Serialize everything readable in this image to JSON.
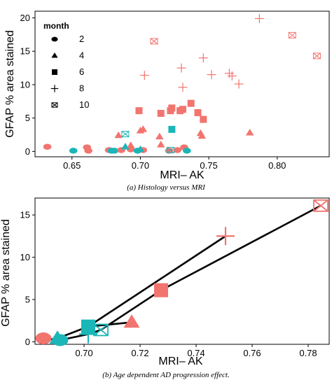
{
  "colors": {
    "salmon": "#F2746F",
    "teal": "#1BB6B8",
    "line": "#000000"
  },
  "chart_data": [
    {
      "type": "scatter",
      "title": "",
      "xlabel": "MRI– AK",
      "ylabel": "GFAP % area stained",
      "xlim": [
        0.623,
        0.838
      ],
      "ylim": [
        -0.8,
        21
      ],
      "xticks": [
        "0.65",
        "0.70",
        "0.75",
        "0.80"
      ],
      "xtick_values": [
        0.65,
        0.7,
        0.75,
        0.8
      ],
      "yticks": [
        "0",
        "5",
        "10",
        "15",
        "20"
      ],
      "ytick_values": [
        0,
        5,
        10,
        15,
        20
      ],
      "legend": {
        "title": "month",
        "position": "upper-left",
        "entries": [
          {
            "label": "2",
            "shape": "circle"
          },
          {
            "label": "4",
            "shape": "triangle"
          },
          {
            "label": "6",
            "shape": "square"
          },
          {
            "label": "8",
            "shape": "plus"
          },
          {
            "label": "10",
            "shape": "boxx"
          }
        ]
      },
      "caption": "(a) Histology versus MRI",
      "points": [
        {
          "x": 0.632,
          "y": 0.7,
          "shape": "circle",
          "color": "salmon"
        },
        {
          "x": 0.651,
          "y": 0.1,
          "shape": "circle",
          "color": "teal"
        },
        {
          "x": 0.661,
          "y": 0.6,
          "shape": "circle",
          "color": "salmon"
        },
        {
          "x": 0.662,
          "y": 0.1,
          "shape": "circle",
          "color": "salmon"
        },
        {
          "x": 0.677,
          "y": 0.2,
          "shape": "circle",
          "color": "salmon"
        },
        {
          "x": 0.679,
          "y": 0.1,
          "shape": "circle",
          "color": "teal"
        },
        {
          "x": 0.681,
          "y": 0.1,
          "shape": "circle",
          "color": "teal"
        },
        {
          "x": 0.686,
          "y": 0.2,
          "shape": "circle",
          "color": "salmon"
        },
        {
          "x": 0.693,
          "y": 0.3,
          "shape": "circle",
          "color": "salmon"
        },
        {
          "x": 0.698,
          "y": 0.1,
          "shape": "circle",
          "color": "teal"
        },
        {
          "x": 0.702,
          "y": 0.2,
          "shape": "circle",
          "color": "salmon"
        },
        {
          "x": 0.721,
          "y": 0.1,
          "shape": "circle",
          "color": "salmon"
        },
        {
          "x": 0.727,
          "y": 0.2,
          "shape": "circle",
          "color": "salmon"
        },
        {
          "x": 0.732,
          "y": 0.6,
          "shape": "circle",
          "color": "salmon"
        },
        {
          "x": 0.734,
          "y": 0.1,
          "shape": "circle",
          "color": "teal"
        },
        {
          "x": 0.684,
          "y": 2.4,
          "shape": "triangle",
          "color": "salmon"
        },
        {
          "x": 0.689,
          "y": 0.7,
          "shape": "triangle",
          "color": "teal"
        },
        {
          "x": 0.693,
          "y": 0.9,
          "shape": "triangle",
          "color": "salmon"
        },
        {
          "x": 0.7,
          "y": 3.1,
          "shape": "triangle",
          "color": "salmon"
        },
        {
          "x": 0.702,
          "y": 3.3,
          "shape": "triangle",
          "color": "salmon"
        },
        {
          "x": 0.7,
          "y": 0.3,
          "shape": "triangle",
          "color": "teal"
        },
        {
          "x": 0.714,
          "y": 2.2,
          "shape": "triangle",
          "color": "salmon"
        },
        {
          "x": 0.715,
          "y": 1.0,
          "shape": "triangle",
          "color": "salmon"
        },
        {
          "x": 0.744,
          "y": 2.7,
          "shape": "triangle",
          "color": "salmon"
        },
        {
          "x": 0.745,
          "y": 2.3,
          "shape": "triangle",
          "color": "salmon"
        },
        {
          "x": 0.78,
          "y": 2.8,
          "shape": "triangle",
          "color": "salmon"
        },
        {
          "x": 0.699,
          "y": 6.1,
          "shape": "square",
          "color": "salmon"
        },
        {
          "x": 0.715,
          "y": 5.7,
          "shape": "square",
          "color": "salmon"
        },
        {
          "x": 0.722,
          "y": 6.1,
          "shape": "square",
          "color": "salmon"
        },
        {
          "x": 0.723,
          "y": 6.5,
          "shape": "square",
          "color": "salmon"
        },
        {
          "x": 0.723,
          "y": 3.3,
          "shape": "square",
          "color": "teal"
        },
        {
          "x": 0.729,
          "y": 6.1,
          "shape": "square",
          "color": "salmon"
        },
        {
          "x": 0.731,
          "y": 6.3,
          "shape": "square",
          "color": "salmon"
        },
        {
          "x": 0.737,
          "y": 7.2,
          "shape": "square",
          "color": "salmon"
        },
        {
          "x": 0.742,
          "y": 5.8,
          "shape": "square",
          "color": "salmon"
        },
        {
          "x": 0.746,
          "y": 4.8,
          "shape": "square",
          "color": "salmon"
        },
        {
          "x": 0.703,
          "y": 11.4,
          "shape": "plus",
          "color": "salmon"
        },
        {
          "x": 0.73,
          "y": 12.5,
          "shape": "plus",
          "color": "salmon"
        },
        {
          "x": 0.731,
          "y": 9.6,
          "shape": "plus",
          "color": "salmon"
        },
        {
          "x": 0.746,
          "y": 14.0,
          "shape": "plus",
          "color": "salmon"
        },
        {
          "x": 0.752,
          "y": 11.5,
          "shape": "plus",
          "color": "salmon"
        },
        {
          "x": 0.765,
          "y": 11.7,
          "shape": "plus",
          "color": "salmon"
        },
        {
          "x": 0.767,
          "y": 11.3,
          "shape": "plus",
          "color": "salmon"
        },
        {
          "x": 0.772,
          "y": 10.1,
          "shape": "plus",
          "color": "salmon"
        },
        {
          "x": 0.787,
          "y": 19.9,
          "shape": "plus",
          "color": "salmon"
        },
        {
          "x": 0.689,
          "y": 2.6,
          "shape": "boxx",
          "color": "teal"
        },
        {
          "x": 0.71,
          "y": 16.5,
          "shape": "boxx",
          "color": "salmon"
        },
        {
          "x": 0.722,
          "y": 0.2,
          "shape": "boxx",
          "color": "teal"
        },
        {
          "x": 0.811,
          "y": 17.4,
          "shape": "boxx",
          "color": "salmon"
        },
        {
          "x": 0.829,
          "y": 14.3,
          "shape": "boxx",
          "color": "salmon"
        }
      ]
    },
    {
      "type": "line",
      "title": "",
      "xlabel": "MRI– AK",
      "ylabel": "GFAP % area stained",
      "xlim": [
        0.6825,
        0.7875
      ],
      "ylim": [
        -0.3,
        17
      ],
      "xticks": [
        "0.70",
        "0.72",
        "0.74",
        "0.76",
        "0.78"
      ],
      "xtick_values": [
        0.7,
        0.72,
        0.74,
        0.76,
        0.78
      ],
      "yticks": [
        "0",
        "5",
        "10",
        "15"
      ],
      "ytick_values": [
        0,
        5,
        10,
        15
      ],
      "caption": "(b) Age dependent AD progression effect.",
      "series": [
        {
          "color": "salmon",
          "points": [
            {
              "x": 0.6855,
              "y": 0.4,
              "shape": "circle"
            },
            {
              "x": 0.717,
              "y": 2.3,
              "shape": "triangle"
            },
            {
              "x": 0.7275,
              "y": 6.1,
              "shape": "square"
            },
            {
              "x": 0.7505,
              "y": 12.5,
              "shape": "plus"
            },
            {
              "x": 0.7845,
              "y": 16.1,
              "shape": "boxx"
            }
          ]
        },
        {
          "color": "teal",
          "points": [
            {
              "x": 0.6915,
              "y": 0.2,
              "shape": "circle"
            },
            {
              "x": 0.6905,
              "y": 0.4,
              "shape": "triangle"
            },
            {
              "x": 0.7015,
              "y": 1.8,
              "shape": "square"
            },
            {
              "x": 0.7015,
              "y": 0.9,
              "shape": "plus"
            },
            {
              "x": 0.706,
              "y": 1.4,
              "shape": "boxx"
            }
          ]
        }
      ],
      "line_segments": [
        [
          [
            0.6855,
            0.4
          ],
          [
            0.6915,
            0.2
          ]
        ],
        [
          [
            0.6905,
            0.4
          ],
          [
            0.7015,
            1.8
          ]
        ],
        [
          [
            0.7015,
            1.8
          ],
          [
            0.717,
            2.3
          ]
        ],
        [
          [
            0.6915,
            0.2
          ],
          [
            0.7015,
            0.9
          ]
        ],
        [
          [
            0.7015,
            0.9
          ],
          [
            0.706,
            1.4
          ]
        ],
        [
          [
            0.7015,
            1.8
          ],
          [
            0.7505,
            12.5
          ]
        ],
        [
          [
            0.706,
            1.4
          ],
          [
            0.7275,
            6.1
          ]
        ],
        [
          [
            0.7275,
            6.1
          ],
          [
            0.7845,
            16.1
          ]
        ]
      ]
    }
  ]
}
